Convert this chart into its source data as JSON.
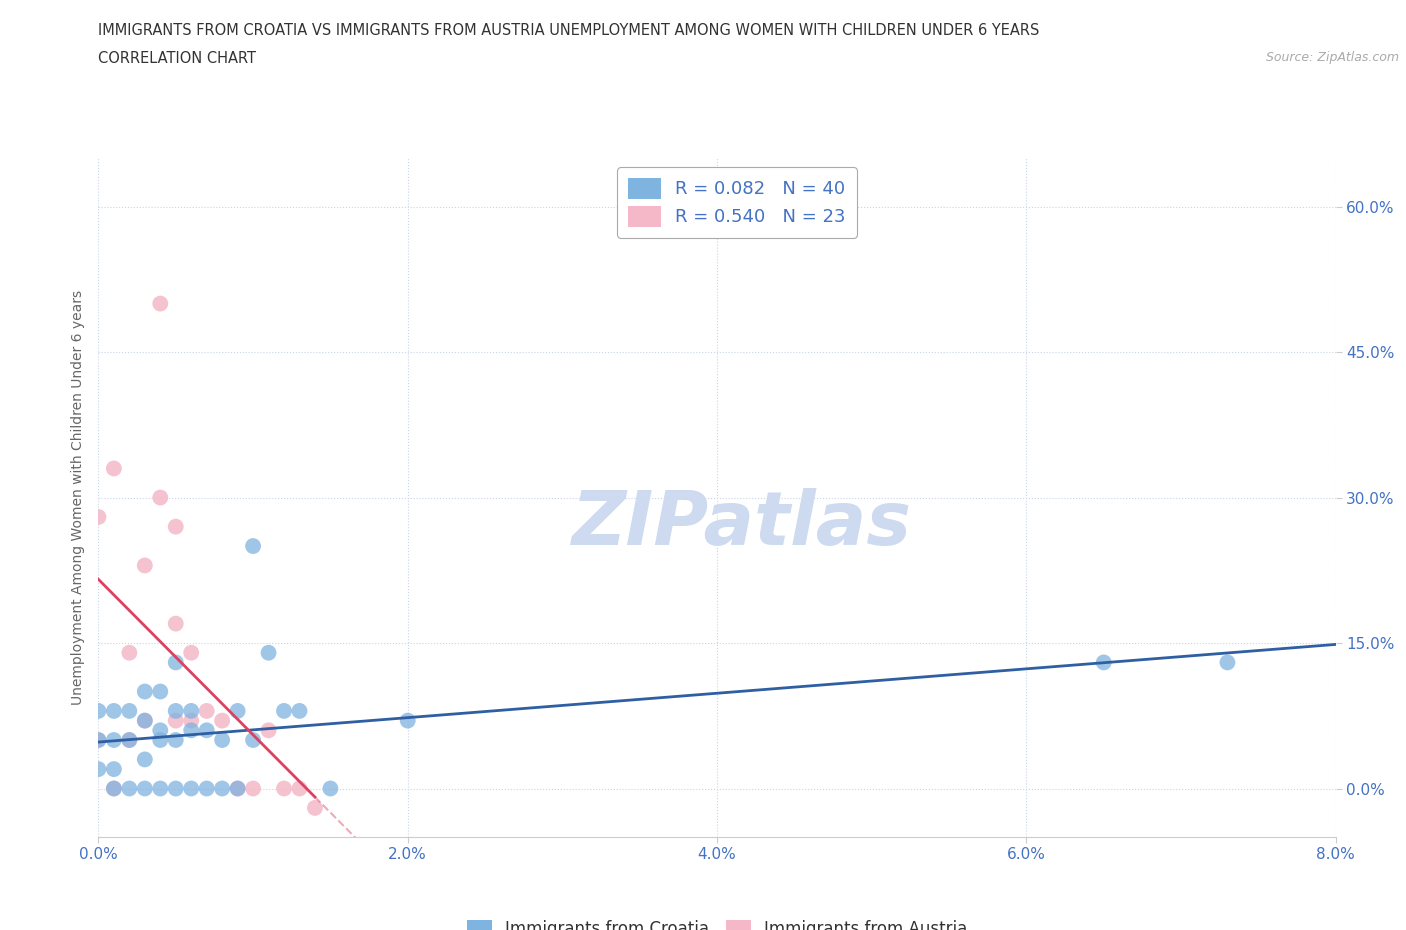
{
  "title_line1": "IMMIGRANTS FROM CROATIA VS IMMIGRANTS FROM AUSTRIA UNEMPLOYMENT AMONG WOMEN WITH CHILDREN UNDER 6 YEARS",
  "title_line2": "CORRELATION CHART",
  "source": "Source: ZipAtlas.com",
  "ylabel": "Unemployment Among Women with Children Under 6 years",
  "xlim": [
    0.0,
    0.08
  ],
  "ylim": [
    -0.05,
    0.65
  ],
  "xticks": [
    0.0,
    0.02,
    0.04,
    0.06,
    0.08
  ],
  "xtick_labels": [
    "0.0%",
    "2.0%",
    "4.0%",
    "6.0%",
    "8.0%"
  ],
  "yticks": [
    0.0,
    0.15,
    0.3,
    0.45,
    0.6
  ],
  "ytick_labels": [
    "0.0%",
    "15.0%",
    "30.0%",
    "45.0%",
    "60.0%"
  ],
  "watermark": "ZIPatlas",
  "legend_label1": "R = 0.082   N = 40",
  "legend_label2": "R = 0.540   N = 23",
  "bottom_label1": "Immigrants from Croatia",
  "bottom_label2": "Immigrants from Austria",
  "croatia_scatter_x": [
    0.0,
    0.0,
    0.0,
    0.001,
    0.001,
    0.001,
    0.001,
    0.002,
    0.002,
    0.002,
    0.003,
    0.003,
    0.003,
    0.003,
    0.004,
    0.004,
    0.004,
    0.004,
    0.005,
    0.005,
    0.005,
    0.005,
    0.006,
    0.006,
    0.006,
    0.007,
    0.007,
    0.008,
    0.008,
    0.009,
    0.009,
    0.01,
    0.01,
    0.011,
    0.012,
    0.013,
    0.015,
    0.02,
    0.065,
    0.073
  ],
  "croatia_scatter_y": [
    0.02,
    0.05,
    0.08,
    0.0,
    0.02,
    0.05,
    0.08,
    0.0,
    0.05,
    0.08,
    0.0,
    0.03,
    0.07,
    0.1,
    0.0,
    0.05,
    0.06,
    0.1,
    0.0,
    0.05,
    0.08,
    0.13,
    0.0,
    0.06,
    0.08,
    0.0,
    0.06,
    0.0,
    0.05,
    0.0,
    0.08,
    0.05,
    0.25,
    0.14,
    0.08,
    0.08,
    0.0,
    0.07,
    0.13,
    0.13
  ],
  "austria_scatter_x": [
    0.0,
    0.0,
    0.001,
    0.001,
    0.002,
    0.002,
    0.003,
    0.003,
    0.004,
    0.004,
    0.005,
    0.005,
    0.005,
    0.006,
    0.006,
    0.007,
    0.008,
    0.009,
    0.01,
    0.011,
    0.012,
    0.013,
    0.014
  ],
  "austria_scatter_y": [
    0.05,
    0.28,
    0.0,
    0.33,
    0.05,
    0.14,
    0.07,
    0.23,
    0.3,
    0.5,
    0.07,
    0.17,
    0.27,
    0.14,
    0.07,
    0.08,
    0.07,
    0.0,
    0.0,
    0.06,
    0.0,
    0.0,
    -0.02
  ],
  "croatia_color": "#7fb3e0",
  "austria_color": "#f4b8c8",
  "croatia_line_color": "#2e5fa3",
  "austria_line_color": "#e04060",
  "grid_color": "#c8d4e8",
  "axis_label_color": "#4472c4",
  "tick_label_color": "#4472c4",
  "watermark_color": "#cddaf0"
}
